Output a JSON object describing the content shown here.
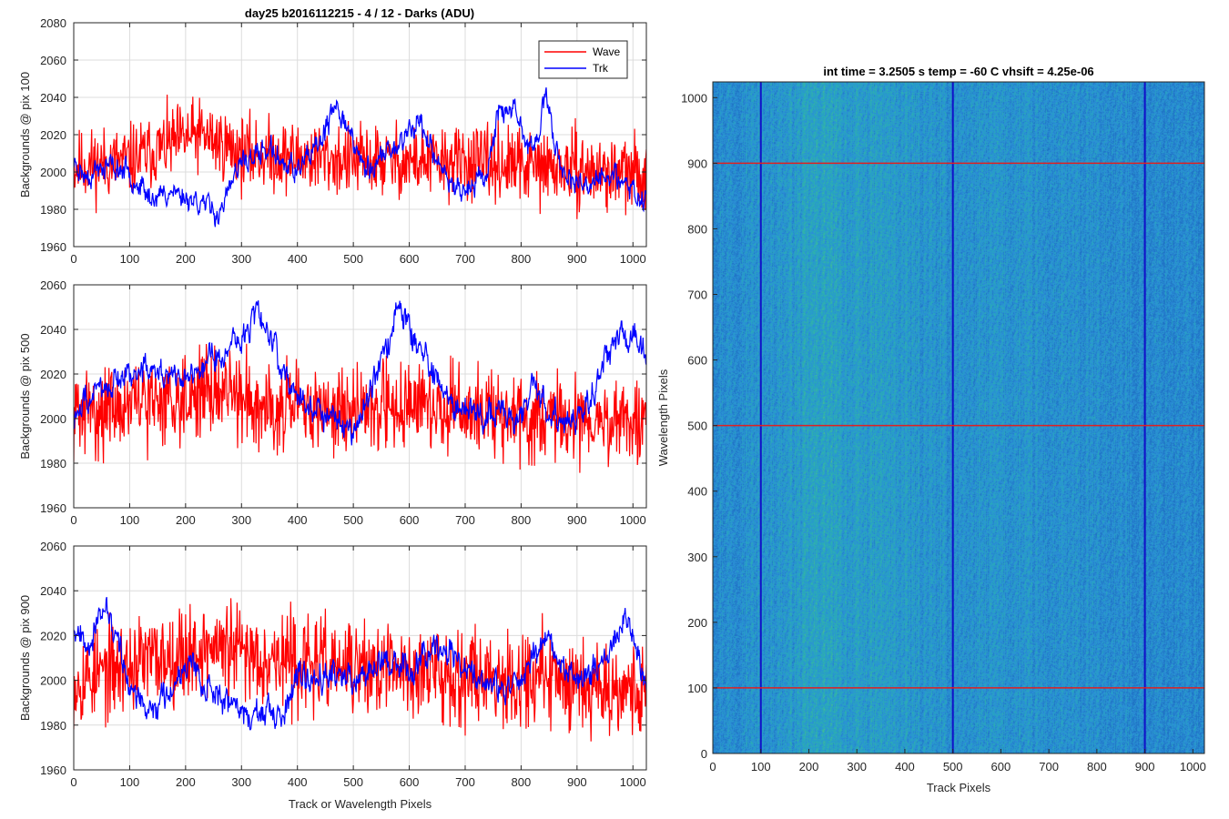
{
  "figure_title": "day25 b2016112215 - 4 / 12 - Darks (ADU)",
  "colors": {
    "wave": "#ff0000",
    "trk": "#0000ff",
    "grid": "#dcdcdc",
    "axis": "#262626"
  },
  "chart_data": [
    {
      "type": "line",
      "title": "day25 b2016112215 - 4 / 12 - Darks (ADU)",
      "xlabel": "",
      "ylabel": "Backgrounds @ pix 100",
      "xlim": [
        0,
        1024
      ],
      "ylim": [
        1960,
        2080
      ],
      "xticks": [
        0,
        100,
        200,
        300,
        400,
        500,
        600,
        700,
        800,
        900,
        1000
      ],
      "yticks": [
        1960,
        1980,
        2000,
        2020,
        2040,
        2060,
        2080
      ],
      "grid": true,
      "legend": "top-right",
      "series": [
        {
          "name": "Wave",
          "color": "#ff0000",
          "mean": 2008,
          "noise": 12,
          "seed": 11,
          "anchors": [
            [
              0,
              2003
            ],
            [
              100,
              2006
            ],
            [
              200,
              2018
            ],
            [
              230,
              2020
            ],
            [
              300,
              2010
            ],
            [
              500,
              2006
            ],
            [
              700,
              2005
            ],
            [
              800,
              2003
            ],
            [
              1024,
              1998
            ]
          ]
        },
        {
          "name": "Trk",
          "color": "#0000ff",
          "mean": 2000,
          "noise": 5,
          "seed": 23,
          "anchors": [
            [
              0,
              2005
            ],
            [
              20,
              1998
            ],
            [
              60,
              2003
            ],
            [
              100,
              2000
            ],
            [
              140,
              1985
            ],
            [
              170,
              1990
            ],
            [
              220,
              1985
            ],
            [
              260,
              1978
            ],
            [
              300,
              2005
            ],
            [
              350,
              2012
            ],
            [
              400,
              2000
            ],
            [
              440,
              2015
            ],
            [
              470,
              2035
            ],
            [
              490,
              2025
            ],
            [
              520,
              2000
            ],
            [
              580,
              2015
            ],
            [
              620,
              2028
            ],
            [
              650,
              2003
            ],
            [
              700,
              1990
            ],
            [
              740,
              2000
            ],
            [
              760,
              2035
            ],
            [
              790,
              2030
            ],
            [
              820,
              2010
            ],
            [
              845,
              2038
            ],
            [
              870,
              2005
            ],
            [
              900,
              1990
            ],
            [
              950,
              2000
            ],
            [
              1000,
              1990
            ],
            [
              1024,
              1985
            ]
          ]
        }
      ]
    },
    {
      "type": "line",
      "title": "",
      "xlabel": "",
      "ylabel": "Backgrounds @ pix 500",
      "xlim": [
        0,
        1024
      ],
      "ylim": [
        1960,
        2060
      ],
      "xticks": [
        0,
        100,
        200,
        300,
        400,
        500,
        600,
        700,
        800,
        900,
        1000
      ],
      "yticks": [
        1960,
        1980,
        2000,
        2020,
        2040,
        2060
      ],
      "grid": true,
      "series": [
        {
          "name": "Wave",
          "color": "#ff0000",
          "mean": 2005,
          "noise": 12,
          "seed": 31,
          "anchors": [
            [
              0,
              2002
            ],
            [
              150,
              2008
            ],
            [
              250,
              2013
            ],
            [
              400,
              2003
            ],
            [
              600,
              2006
            ],
            [
              800,
              2000
            ],
            [
              1024,
              1998
            ]
          ]
        },
        {
          "name": "Trk",
          "color": "#0000ff",
          "mean": 2010,
          "noise": 5,
          "seed": 47,
          "anchors": [
            [
              0,
              2000
            ],
            [
              50,
              2015
            ],
            [
              100,
              2020
            ],
            [
              150,
              2022
            ],
            [
              200,
              2018
            ],
            [
              250,
              2028
            ],
            [
              300,
              2035
            ],
            [
              330,
              2050
            ],
            [
              360,
              2030
            ],
            [
              400,
              2010
            ],
            [
              450,
              2002
            ],
            [
              500,
              1995
            ],
            [
              550,
              2025
            ],
            [
              580,
              2050
            ],
            [
              620,
              2030
            ],
            [
              680,
              2005
            ],
            [
              720,
              2000
            ],
            [
              760,
              2005
            ],
            [
              800,
              2000
            ],
            [
              820,
              2015
            ],
            [
              860,
              2000
            ],
            [
              900,
              2000
            ],
            [
              940,
              2020
            ],
            [
              980,
              2040
            ],
            [
              1024,
              2030
            ]
          ]
        }
      ]
    },
    {
      "type": "line",
      "title": "",
      "xlabel": "Track or Wavelength Pixels",
      "ylabel": "Backgrounds @ pix 900",
      "xlim": [
        0,
        1024
      ],
      "ylim": [
        1960,
        2060
      ],
      "xticks": [
        0,
        100,
        200,
        300,
        400,
        500,
        600,
        700,
        800,
        900,
        1000
      ],
      "yticks": [
        1960,
        1980,
        2000,
        2020,
        2040,
        2060
      ],
      "grid": true,
      "series": [
        {
          "name": "Wave",
          "color": "#ff0000",
          "mean": 2006,
          "noise": 13,
          "seed": 53,
          "anchors": [
            [
              0,
              2000
            ],
            [
              150,
              2010
            ],
            [
              250,
              2015
            ],
            [
              400,
              2008
            ],
            [
              500,
              2005
            ],
            [
              700,
              2003
            ],
            [
              900,
              2000
            ],
            [
              1024,
              1995
            ]
          ]
        },
        {
          "name": "Trk",
          "color": "#0000ff",
          "mean": 2000,
          "noise": 5,
          "seed": 67,
          "anchors": [
            [
              0,
              2025
            ],
            [
              30,
              2018
            ],
            [
              60,
              2032
            ],
            [
              100,
              1998
            ],
            [
              130,
              1985
            ],
            [
              170,
              1995
            ],
            [
              200,
              2010
            ],
            [
              250,
              1995
            ],
            [
              300,
              1985
            ],
            [
              340,
              1985
            ],
            [
              370,
              1980
            ],
            [
              400,
              2000
            ],
            [
              450,
              2005
            ],
            [
              500,
              2000
            ],
            [
              550,
              2010
            ],
            [
              600,
              2005
            ],
            [
              650,
              2018
            ],
            [
              700,
              2005
            ],
            [
              740,
              1998
            ],
            [
              780,
              1995
            ],
            [
              820,
              2010
            ],
            [
              850,
              2018
            ],
            [
              880,
              2005
            ],
            [
              920,
              2000
            ],
            [
              960,
              2015
            ],
            [
              990,
              2028
            ],
            [
              1024,
              1998
            ]
          ]
        }
      ]
    },
    {
      "type": "heatmap",
      "title": "int time = 3.2505 s    temp = -60 C    vhsift = 4.25e-06",
      "xlabel": "Track Pixels",
      "ylabel": "Wavelength Pixels",
      "xlim": [
        0,
        1024
      ],
      "ylim": [
        0,
        1024
      ],
      "xticks": [
        0,
        100,
        200,
        300,
        400,
        500,
        600,
        700,
        800,
        900,
        1000
      ],
      "yticks": [
        0,
        100,
        200,
        300,
        400,
        500,
        600,
        700,
        800,
        900,
        1000
      ],
      "hlines": {
        "color": "#e02020",
        "values": [
          100,
          500,
          900
        ]
      },
      "vlines": {
        "color": "#1010c8",
        "values": [
          100,
          500,
          900
        ]
      },
      "colormap": [
        "#1f72c4",
        "#2b8fd8",
        "#27a6c0",
        "#36b7a0",
        "#8cc46a",
        "#c8cf4c"
      ],
      "column_profile": [
        [
          0,
          0.35
        ],
        [
          100,
          0.45
        ],
        [
          150,
          0.5
        ],
        [
          200,
          0.62
        ],
        [
          230,
          0.7
        ],
        [
          260,
          0.6
        ],
        [
          300,
          0.55
        ],
        [
          350,
          0.58
        ],
        [
          400,
          0.5
        ],
        [
          450,
          0.45
        ],
        [
          500,
          0.4
        ],
        [
          600,
          0.45
        ],
        [
          700,
          0.38
        ],
        [
          800,
          0.35
        ],
        [
          900,
          0.3
        ],
        [
          1024,
          0.28
        ]
      ]
    }
  ]
}
